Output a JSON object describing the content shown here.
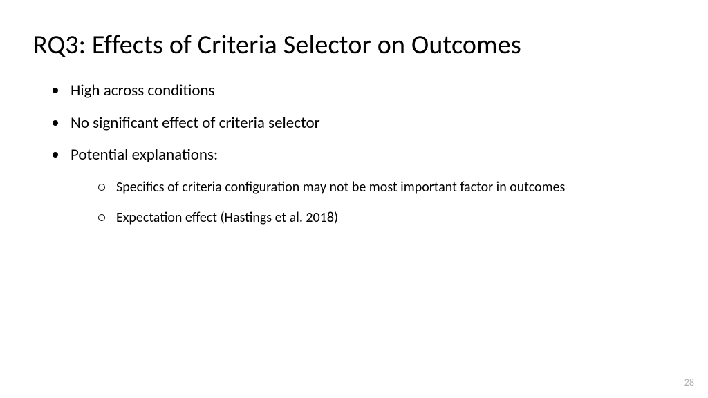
{
  "slide": {
    "title": "RQ3: Effects of Criteria Selector on Outcomes",
    "bullets": [
      "High across conditions",
      "No significant effect of criteria selector",
      "Potential explanations:"
    ],
    "sub_bullets": [
      "Specifics of criteria configuration may not be most important factor in outcomes",
      "Expectation effect (Hastings et al. 2018)"
    ],
    "page_number": "28"
  },
  "style": {
    "background_color": "#ffffff",
    "text_color": "#000000",
    "page_number_color": "#b0b0b0",
    "title_fontsize": 38,
    "bullet_fontsize": 23,
    "sub_bullet_fontsize": 20,
    "font_family": "Calibri",
    "level1_marker": "filled-circle",
    "level2_marker": "hollow-circle"
  }
}
